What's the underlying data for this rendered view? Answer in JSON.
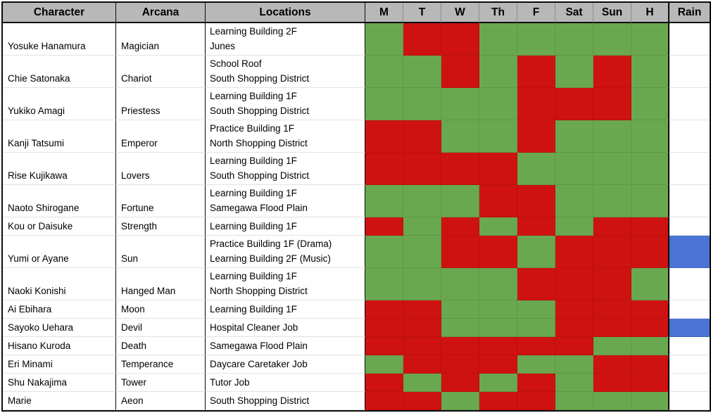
{
  "colors": {
    "available_green": "#6aa84f",
    "unavailable_red": "#ce1211",
    "rain_blue": "#4a73d4",
    "header_gray": "#b8b8b8",
    "row_line_gray": "#e3e3e3"
  },
  "table": {
    "headers": {
      "character": "Character",
      "arcana": "Arcana",
      "locations": "Locations",
      "days": [
        "M",
        "T",
        "W",
        "Th",
        "F",
        "Sat",
        "Sun",
        "H"
      ],
      "rain": "Rain"
    },
    "rows": [
      {
        "character": "Yosuke Hanamura",
        "arcana": "Magician",
        "locations": [
          "Learning Building 2F",
          "Junes"
        ],
        "days": [
          1,
          0,
          0,
          1,
          1,
          1,
          1,
          1
        ],
        "rain": false
      },
      {
        "character": "Chie Satonaka",
        "arcana": "Chariot",
        "locations": [
          "School Roof",
          "South Shopping District"
        ],
        "days": [
          1,
          1,
          0,
          1,
          0,
          1,
          0,
          1
        ],
        "rain": false
      },
      {
        "character": "Yukiko Amagi",
        "arcana": "Priestess",
        "locations": [
          "Learning Building 1F",
          "South Shopping District"
        ],
        "days": [
          1,
          1,
          1,
          1,
          0,
          0,
          0,
          1
        ],
        "rain": false
      },
      {
        "character": "Kanji Tatsumi",
        "arcana": "Emperor",
        "locations": [
          "Practice Building 1F",
          "North Shopping District"
        ],
        "days": [
          0,
          0,
          1,
          1,
          0,
          1,
          1,
          1
        ],
        "rain": false
      },
      {
        "character": "Rise Kujikawa",
        "arcana": "Lovers",
        "locations": [
          "Learning Building 1F",
          "South Shopping District"
        ],
        "days": [
          0,
          0,
          0,
          0,
          1,
          1,
          1,
          1
        ],
        "rain": false
      },
      {
        "character": "Naoto Shirogane",
        "arcana": "Fortune",
        "locations": [
          "Learning Building 1F",
          "Samegawa Flood Plain"
        ],
        "days": [
          1,
          1,
          1,
          0,
          0,
          1,
          1,
          1
        ],
        "rain": false
      },
      {
        "character": "Kou or Daisuke",
        "arcana": "Strength",
        "locations": [
          "Learning Building 1F"
        ],
        "days": [
          0,
          1,
          0,
          1,
          0,
          1,
          0,
          0
        ],
        "rain": false
      },
      {
        "character": "Yumi or Ayane",
        "arcana": "Sun",
        "locations": [
          "Practice Building 1F (Drama)",
          "Learning Building 2F (Music)"
        ],
        "days": [
          1,
          1,
          0,
          0,
          1,
          0,
          0,
          0
        ],
        "rain": true
      },
      {
        "character": "Naoki Konishi",
        "arcana": "Hanged Man",
        "locations": [
          "Learning Building 1F",
          "North Shopping District"
        ],
        "days": [
          1,
          1,
          1,
          1,
          0,
          0,
          0,
          1
        ],
        "rain": false
      },
      {
        "character": "Ai Ebihara",
        "arcana": "Moon",
        "locations": [
          "Learning Building 1F"
        ],
        "days": [
          0,
          0,
          1,
          1,
          1,
          0,
          0,
          0
        ],
        "rain": false
      },
      {
        "character": "Sayoko Uehara",
        "arcana": "Devil",
        "locations": [
          "Hospital Cleaner Job"
        ],
        "days": [
          0,
          0,
          1,
          1,
          1,
          0,
          0,
          0
        ],
        "rain": true
      },
      {
        "character": "Hisano Kuroda",
        "arcana": "Death",
        "locations": [
          "Samegawa Flood Plain"
        ],
        "days": [
          0,
          0,
          0,
          0,
          0,
          0,
          1,
          1
        ],
        "rain": false
      },
      {
        "character": "Eri Minami",
        "arcana": "Temperance",
        "locations": [
          "Daycare Caretaker Job"
        ],
        "days": [
          1,
          0,
          0,
          0,
          1,
          1,
          0,
          0
        ],
        "rain": false
      },
      {
        "character": "Shu Nakajima",
        "arcana": "Tower",
        "locations": [
          "Tutor Job"
        ],
        "days": [
          0,
          1,
          0,
          1,
          0,
          1,
          0,
          0
        ],
        "rain": false
      },
      {
        "character": "Marie",
        "arcana": "Aeon",
        "locations": [
          "South Shopping District"
        ],
        "days": [
          0,
          0,
          1,
          0,
          0,
          1,
          1,
          1
        ],
        "rain": false
      }
    ]
  }
}
